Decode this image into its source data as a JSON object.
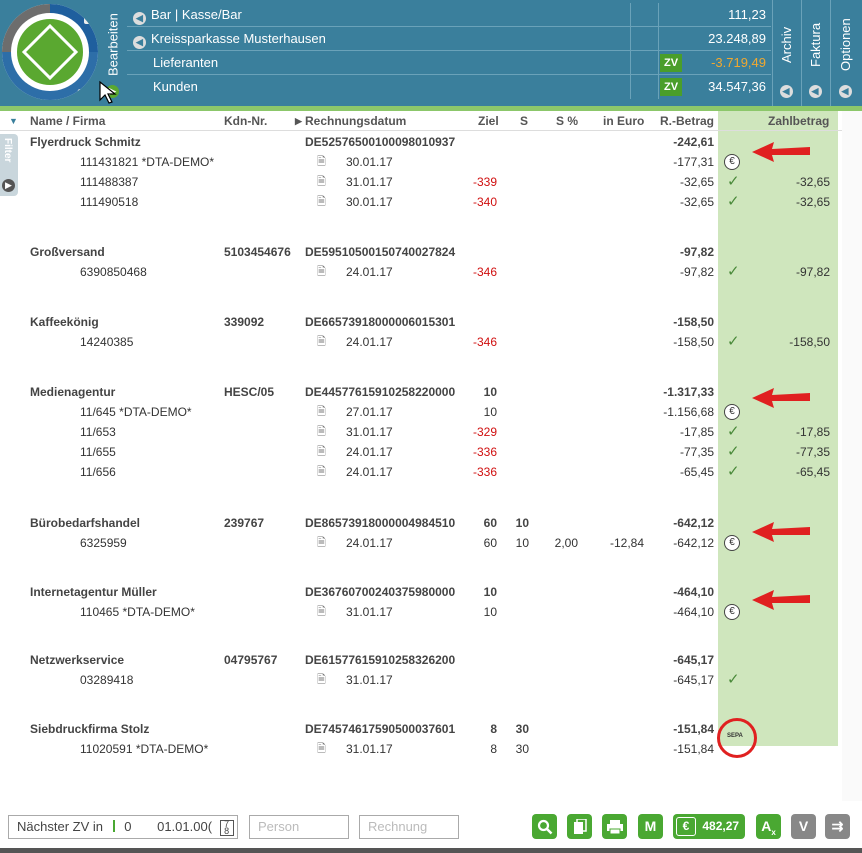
{
  "header": {
    "tabs": {
      "bearbeiten": "Bearbeiten",
      "archiv": "Archiv",
      "faktura": "Faktura",
      "optionen": "Optionen"
    },
    "accounts": [
      {
        "name": "Bar | Kasse/Bar",
        "value": "111,23",
        "zv": ""
      },
      {
        "name": "Kreissparkasse Musterhausen",
        "value": "23.248,89",
        "zv": ""
      },
      {
        "name": "Lieferanten",
        "value": "-3.719,49",
        "zv": "ZV"
      },
      {
        "name": "Kunden",
        "value": "34.547,36",
        "zv": "ZV"
      }
    ]
  },
  "sidebar": {
    "filter_label": "Filter"
  },
  "table": {
    "columns": {
      "name": "Name / Firma",
      "kdn": "Kdn-Nr.",
      "date": "Rechnungsdatum",
      "ziel": "Ziel",
      "s": "S",
      "spct": "S %",
      "euro": "in Euro",
      "betrag": "R.-Betrag",
      "zahl": "Zahlbetrag"
    },
    "rows": [
      {
        "group": true,
        "name": "Flyerdruck Schmitz",
        "kdn": "",
        "date": "DE52576500100098010937",
        "ziel": "",
        "s": "",
        "spct": "",
        "euro": "",
        "betrag": "-242,61",
        "status": "",
        "zahl": ""
      },
      {
        "group": false,
        "name": "111431821 *DTA-DEMO*",
        "date": "30.01.17",
        "ziel": "",
        "betrag": "-177,31",
        "status": "euro",
        "zahl": ""
      },
      {
        "group": false,
        "name": "111488387",
        "date": "31.01.17",
        "ziel": "-339",
        "betrag": "-32,65",
        "status": "check",
        "zahl": "-32,65"
      },
      {
        "group": false,
        "name": "111490518",
        "date": "30.01.17",
        "ziel": "-340",
        "betrag": "-32,65",
        "status": "check",
        "zahl": "-32,65"
      },
      {
        "group": true,
        "name": "Großversand",
        "kdn": "5103454676",
        "date": "DE59510500150740027824",
        "betrag": "-97,82"
      },
      {
        "group": false,
        "name": "6390850468",
        "date": "24.01.17",
        "ziel": "-346",
        "betrag": "-97,82",
        "status": "check",
        "zahl": "-97,82"
      },
      {
        "group": true,
        "name": "Kaffeekönig",
        "kdn": "339092",
        "date": "DE66573918000006015301",
        "betrag": "-158,50"
      },
      {
        "group": false,
        "name": "14240385",
        "date": "24.01.17",
        "ziel": "-346",
        "betrag": "-158,50",
        "status": "check",
        "zahl": "-158,50"
      },
      {
        "group": true,
        "name": "Medienagentur",
        "kdn": "HESC/05",
        "date": "DE44577615910258220000",
        "ziel": "10",
        "betrag": "-1.317,33"
      },
      {
        "group": false,
        "name": "11/645 *DTA-DEMO*",
        "date": "27.01.17",
        "ziel": "10",
        "betrag": "-1.156,68",
        "status": "euro",
        "zahl": ""
      },
      {
        "group": false,
        "name": "11/653",
        "date": "31.01.17",
        "ziel": "-329",
        "betrag": "-17,85",
        "status": "check",
        "zahl": "-17,85"
      },
      {
        "group": false,
        "name": "11/655",
        "date": "24.01.17",
        "ziel": "-336",
        "betrag": "-77,35",
        "status": "check",
        "zahl": "-77,35"
      },
      {
        "group": false,
        "name": "11/656",
        "date": "24.01.17",
        "ziel": "-336",
        "betrag": "-65,45",
        "status": "check",
        "zahl": "-65,45"
      },
      {
        "group": true,
        "name": "Bürobedarfshandel",
        "kdn": "239767",
        "date": "DE86573918000004984510",
        "ziel": "60",
        "s": "10",
        "betrag": "-642,12"
      },
      {
        "group": false,
        "name": "6325959",
        "date": "24.01.17",
        "ziel": "60",
        "s": "10",
        "spct": "2,00",
        "euro": "-12,84",
        "betrag": "-642,12",
        "status": "euro",
        "zahl": ""
      },
      {
        "group": true,
        "name": "Internetagentur Müller",
        "kdn": "",
        "date": "DE36760700240375980000",
        "ziel": "10",
        "betrag": "-464,10"
      },
      {
        "group": false,
        "name": "110465 *DTA-DEMO*",
        "date": "31.01.17",
        "ziel": "10",
        "betrag": "-464,10",
        "status": "euro",
        "zahl": ""
      },
      {
        "group": true,
        "name": "Netzwerkservice",
        "kdn": "04795767",
        "date": "DE61577615910258326200",
        "betrag": "-645,17"
      },
      {
        "group": false,
        "name": "03289418",
        "date": "31.01.17",
        "ziel": "",
        "betrag": "-645,17",
        "status": "check",
        "zahl": ""
      },
      {
        "group": true,
        "name": "Siebdruckfirma Stolz",
        "kdn": "",
        "date": "DE74574617590500037601",
        "ziel": "8",
        "s": "30",
        "betrag": "-151,84"
      },
      {
        "group": false,
        "name": "11020591 *DTA-DEMO*",
        "date": "31.01.17",
        "ziel": "8",
        "s": "30",
        "betrag": "-151,84",
        "status": "sepa",
        "zahl": ""
      }
    ]
  },
  "sepa_label": "SEPA",
  "footer": {
    "next_zv_label": "Nächster ZV in",
    "next_zv_days": "0",
    "next_zv_date": "01.01.00(",
    "person_placeholder": "Person",
    "rechnung_placeholder": "Rechnung",
    "btn_m": "M",
    "btn_euro_symbol": "€",
    "total": "482,27",
    "btn_v": "V",
    "btn_ax": "A"
  },
  "colors": {
    "header": "#3a7f9c",
    "green": "#8cc76a",
    "zahl_column": "#cfe6bd",
    "red_arrow": "#e02020",
    "button_green": "#4aa832"
  }
}
